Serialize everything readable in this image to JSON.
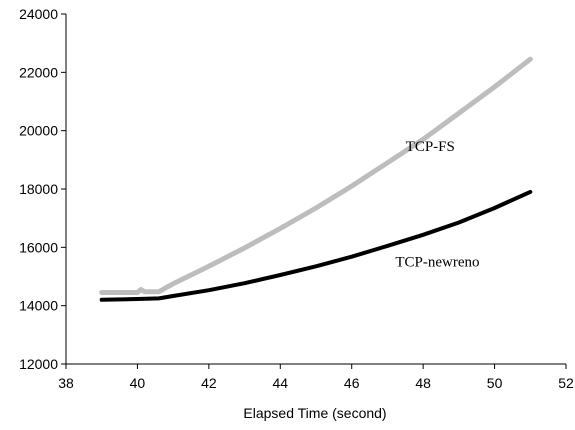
{
  "chart_data": {
    "type": "line",
    "title": "",
    "xlabel": "Elapsed Time (second)",
    "ylabel": "",
    "xlim": [
      38,
      52
    ],
    "ylim": [
      12000,
      24000
    ],
    "x_ticks": [
      38,
      40,
      42,
      44,
      46,
      48,
      50,
      52
    ],
    "y_ticks": [
      12000,
      14000,
      16000,
      18000,
      20000,
      22000,
      24000
    ],
    "x_tick_labels": [
      "38",
      "40",
      "42",
      "44",
      "46",
      "48",
      "50",
      "52"
    ],
    "y_tick_labels": [
      "12000",
      "14000",
      "16000",
      "18000",
      "20000",
      "22000",
      "24000"
    ],
    "grid": false,
    "legend": "none",
    "series": [
      {
        "name": "TCP-FS",
        "color": "#bdbdbd",
        "x": [
          39.0,
          40.0,
          40.1,
          40.2,
          40.6,
          41,
          42,
          43,
          44,
          45,
          46,
          47,
          48,
          49,
          50,
          51
        ],
        "y": [
          14450,
          14450,
          14550,
          14480,
          14480,
          14750,
          15350,
          15980,
          16650,
          17350,
          18100,
          18900,
          19700,
          20600,
          21500,
          22450
        ]
      },
      {
        "name": "TCP-newreno",
        "color": "#000000",
        "x": [
          39.0,
          40.0,
          40.6,
          41,
          42,
          43,
          44,
          45,
          46,
          47,
          48,
          49,
          50,
          51
        ],
        "y": [
          14200,
          14230,
          14250,
          14330,
          14530,
          14770,
          15050,
          15350,
          15680,
          16050,
          16430,
          16850,
          17350,
          17900
        ]
      }
    ],
    "annotations": [
      {
        "text": "TCP-FS",
        "series": 0,
        "x": 48.2,
        "y": 19300
      },
      {
        "text": "TCP-newreno",
        "series": 1,
        "x": 48.4,
        "y": 15350
      }
    ]
  }
}
